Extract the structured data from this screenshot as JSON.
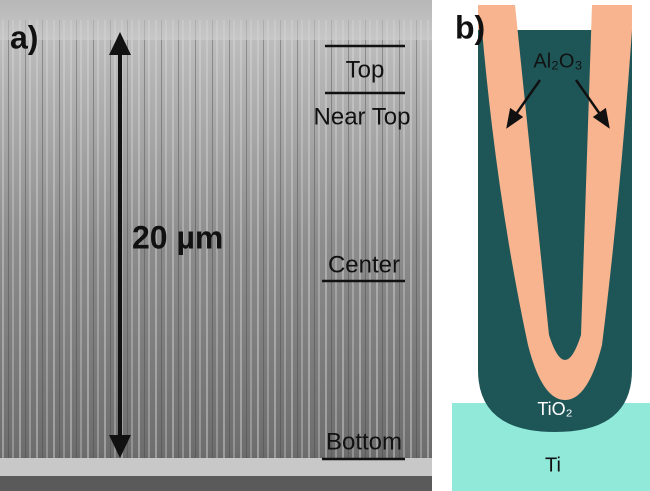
{
  "panel_a": {
    "label": "a)",
    "scale": "20 µm",
    "levels": [
      "Top",
      "Near Top",
      "Center",
      "Bottom"
    ]
  },
  "panel_b": {
    "label": "b)",
    "layers": {
      "coating": "Al₂O₃",
      "tube": "TiO₂",
      "substrate": "Ti"
    }
  }
}
